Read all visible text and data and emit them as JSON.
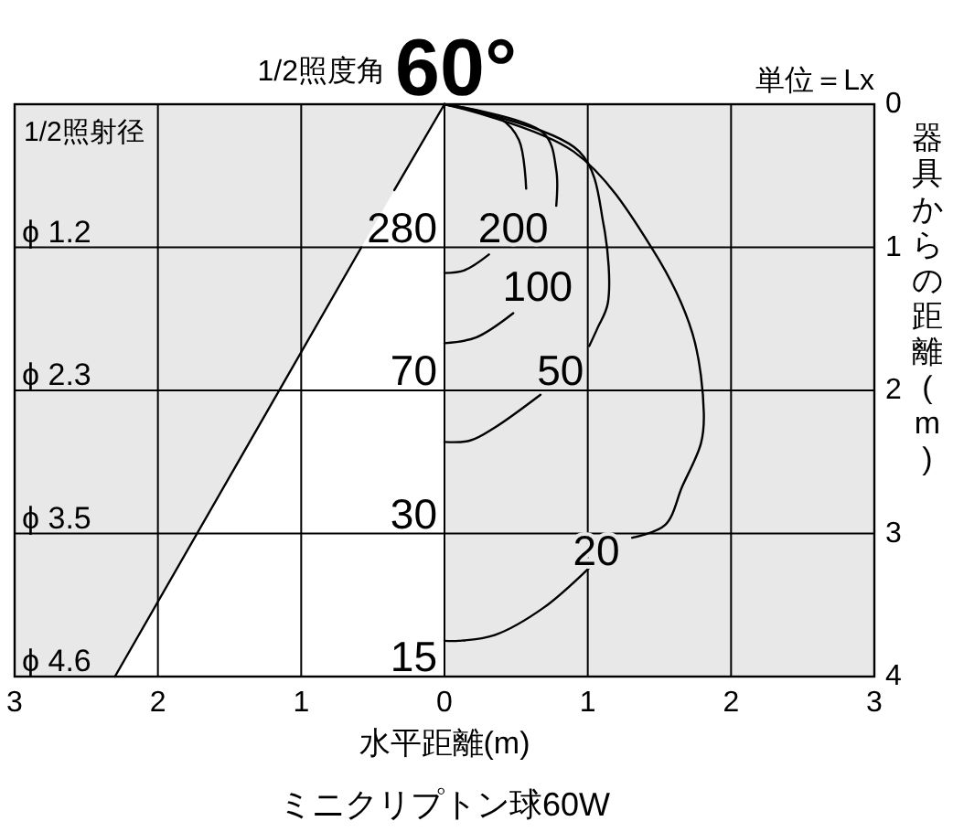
{
  "chart_data": {
    "type": "line",
    "title": "1/2照度角",
    "subtitle": "60°",
    "xlabel": "水平距離(m)",
    "ylabel": "器具からの距離(m)",
    "xlim": [
      -3,
      3
    ],
    "ylim": [
      4,
      0
    ],
    "xticks": [
      {
        "value": -3,
        "label": "3"
      },
      {
        "value": -2,
        "label": "2"
      },
      {
        "value": -1,
        "label": "1"
      },
      0,
      1,
      2,
      3
    ],
    "yticks": [
      0,
      1,
      2,
      3,
      4
    ],
    "grid": true,
    "series": [
      {
        "color": "#000000",
        "x": [
          0,
          0.39,
          0.52,
          0.57,
          0.45,
          0.31,
          0.14,
          0
        ],
        "values": [
          0,
          0.1,
          0.25,
          0.59,
          null,
          1.05,
          1.16,
          1.18
        ]
      },
      {
        "color": "#000000",
        "x": [
          0,
          0.69,
          0.78,
          0.78,
          0.63,
          0.48,
          0.22,
          0
        ],
        "values": [
          0,
          0.2,
          0.46,
          0.71,
          null,
          1.46,
          1.63,
          1.67
        ]
      },
      {
        "color": "#000000",
        "x": [
          0,
          0.94,
          1.11,
          1.14,
          1.07,
          1.01,
          0.84,
          0.67,
          0.35,
          0.18,
          0
        ],
        "values": [
          0,
          0.33,
          0.84,
          1.39,
          1.56,
          1.69,
          null,
          2.03,
          2.26,
          2.35,
          2.36
        ]
      },
      {
        "color": "#000000",
        "x": [
          0,
          0.9,
          1.45,
          1.73,
          1.81,
          1.79,
          1.66,
          1.54,
          1.31,
          1.16,
          1.01,
          0.69,
          0.35,
          0.1,
          0
        ],
        "values": [
          0,
          0.33,
          1.01,
          1.6,
          2.16,
          2.37,
          2.67,
          2.94,
          3.03,
          null,
          3.24,
          3.52,
          3.71,
          3.75,
          3.75
        ]
      },
      {
        "color": "#000000",
        "x": [
          0,
          -0.35,
          -0.46,
          -0.58,
          -2.3
        ],
        "values": [
          0,
          0.6,
          null,
          1,
          4
        ]
      }
    ],
    "annotations": [
      "200",
      "100",
      "50",
      "20",
      "280",
      "70",
      "30",
      "15",
      "ϕ 1.2",
      "ϕ 2.3",
      "ϕ 3.5",
      "ϕ 4.6",
      "1/2照射径",
      "単位＝Lx",
      "ミニクリプトン球60W"
    ]
  }
}
